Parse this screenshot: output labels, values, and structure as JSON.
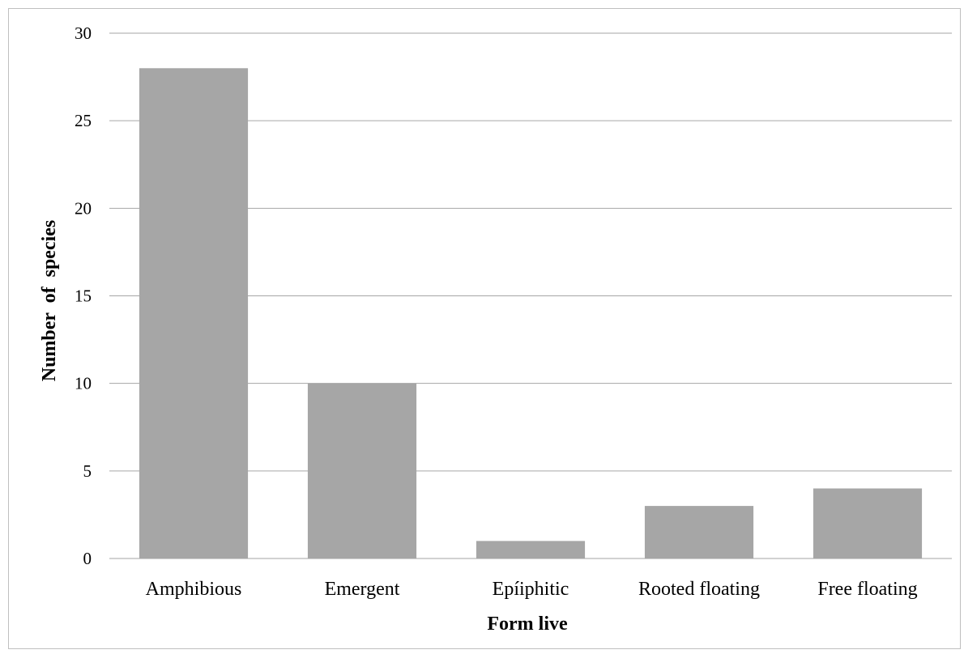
{
  "chart_data": {
    "type": "bar",
    "categories": [
      "Amphibious",
      "Emergent",
      "Epíiphitic",
      "Rooted floating",
      "Free floating"
    ],
    "values": [
      28,
      10,
      1,
      3,
      4
    ],
    "title": "",
    "xlabel": "Form live",
    "ylabel": "Number  of  species",
    "ylim": [
      0,
      30
    ],
    "yticks": [
      0,
      5,
      10,
      15,
      20,
      25,
      30
    ],
    "grid": true,
    "legend": "none",
    "bar_color": "#a6a6a6",
    "grid_color": "#a6a6a6"
  }
}
